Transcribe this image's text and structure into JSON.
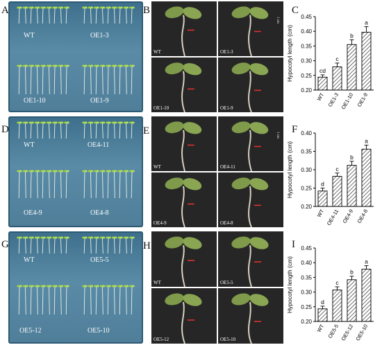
{
  "rows": [
    {
      "letters": [
        "A",
        "B",
        "C"
      ],
      "plate_labels": [
        "WT",
        "OE1-3",
        "OE1-10",
        "OE1-9"
      ],
      "photo_labels": [
        "WT",
        "OE1-3",
        "OE1-10",
        "OE1-9"
      ],
      "scale_label": "1 cm"
    },
    {
      "letters": [
        "D",
        "E",
        "F"
      ],
      "plate_labels": [
        "WT",
        "OE4-11",
        "OE4-9",
        "OE4-8"
      ],
      "photo_labels": [
        "WT",
        "OE4-11",
        "OE4-9",
        "OE4-8"
      ],
      "scale_label": "1 cm"
    },
    {
      "letters": [
        "G",
        "H",
        "I"
      ],
      "plate_labels": [
        "WT",
        "OE5-5",
        "OE5-12",
        "OE5-10"
      ],
      "photo_labels": [
        "WT",
        "OE5-5",
        "OE5-12",
        "OE5-10"
      ],
      "scale_label": ""
    }
  ],
  "chart_data": [
    {
      "type": "bar",
      "categories": [
        "WT",
        "OE1-3",
        "OE1-10",
        "OE1-9"
      ],
      "values": [
        0.244,
        0.279,
        0.355,
        0.397
      ],
      "errors": [
        0.008,
        0.013,
        0.016,
        0.019
      ],
      "sig_letters": [
        "cd",
        "c",
        "b",
        "a"
      ],
      "ylabel": "Hypocotyl length (cm)",
      "ylim": [
        0.2,
        0.45
      ],
      "yticks": [
        0.2,
        0.25,
        0.3,
        0.35,
        0.4,
        0.45
      ],
      "bar_fill": "hatched"
    },
    {
      "type": "bar",
      "categories": [
        "WT",
        "OE4-11",
        "OE4-9",
        "OE4-8"
      ],
      "values": [
        0.242,
        0.282,
        0.312,
        0.356
      ],
      "errors": [
        0.008,
        0.009,
        0.011,
        0.011
      ],
      "sig_letters": [
        "d",
        "c",
        "b",
        "a"
      ],
      "ylabel": "Hypocotyl length (cm)",
      "ylim": [
        0.2,
        0.4
      ],
      "yticks": [
        0.2,
        0.25,
        0.3,
        0.35,
        0.4
      ],
      "bar_fill": "hatched"
    },
    {
      "type": "bar",
      "categories": [
        "WT",
        "OE5-5",
        "OE5-12",
        "OE5-10"
      ],
      "values": [
        0.243,
        0.307,
        0.342,
        0.378
      ],
      "errors": [
        0.009,
        0.011,
        0.012,
        0.012
      ],
      "sig_letters": [
        "d",
        "c",
        "b",
        "a"
      ],
      "ylabel": "Hypocotyl length (cm)",
      "ylim": [
        0.2,
        0.45
      ],
      "yticks": [
        0.2,
        0.25,
        0.3,
        0.35,
        0.4,
        0.45
      ],
      "bar_fill": "hatched"
    }
  ]
}
